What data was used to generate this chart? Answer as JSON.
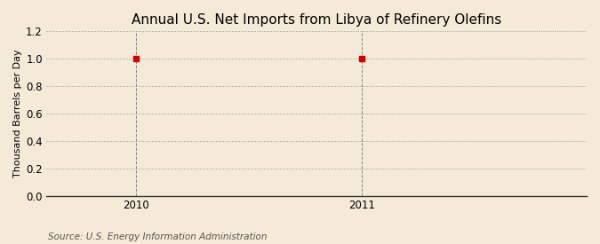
{
  "title": "Annual U.S. Net Imports from Libya of Refinery Olefins",
  "ylabel": "Thousand Barrels per Day",
  "source": "Source: U.S. Energy Information Administration",
  "x_data": [
    2010,
    2011
  ],
  "y_data": [
    1.0,
    1.0
  ],
  "xlim": [
    2009.6,
    2012.0
  ],
  "ylim": [
    0.0,
    1.2
  ],
  "yticks": [
    0.0,
    0.2,
    0.4,
    0.6,
    0.8,
    1.0,
    1.2
  ],
  "xticks": [
    2010,
    2011
  ],
  "marker_color": "#cc0000",
  "marker_size": 4,
  "background_color": "#f5ead8",
  "grid_color": "#999999",
  "vline_color": "#888888",
  "title_fontsize": 11,
  "ylabel_fontsize": 8,
  "source_fontsize": 7.5,
  "tick_fontsize": 8.5
}
